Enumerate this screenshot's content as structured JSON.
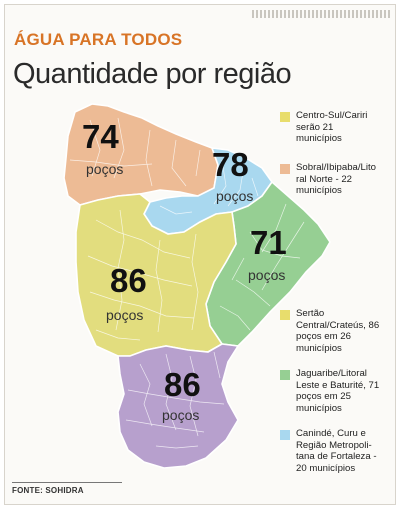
{
  "header": {
    "kicker": "ÁGUA PARA TODOS",
    "title": "Quantidade por região"
  },
  "map_labels": [
    {
      "number": "74",
      "unit": "poços"
    },
    {
      "number": "78",
      "unit": "poços"
    },
    {
      "number": "71",
      "unit": "poços"
    },
    {
      "number": "86",
      "unit": "poços"
    },
    {
      "number": "86",
      "unit": "poços"
    }
  ],
  "legend": [
    {
      "color": "#e8dd6c",
      "text": "Centro-Sul/Cariri\nserão 21\nmunicípios"
    },
    {
      "color": "#edbb95",
      "text": "Sobral/Ibipaba/Lito\nral Norte - 22\nmunicípios"
    },
    {
      "color": "#e8dd6c",
      "text": "Sertão\nCentral/Crateús, 86\npoços em 26\nmunicípios"
    },
    {
      "color": "#96cf93",
      "text": "Jaguaribe/Litoral\nLeste e Baturité, 71\npoços em  25\nmunicípios"
    },
    {
      "color": "#a9d8ef",
      "text": "Canindé, Curu e\nRegião Metropoli-\ntana de Fortaleza -\n20 municípios"
    }
  ],
  "region_colors": {
    "sobral": "#edbb95",
    "metro": "#a9d8ef",
    "jaguaribe": "#96cf93",
    "sertao": "#e2dd7e",
    "cariri": "#b7a0cd"
  },
  "source": "FONTE: SOHIDRA"
}
